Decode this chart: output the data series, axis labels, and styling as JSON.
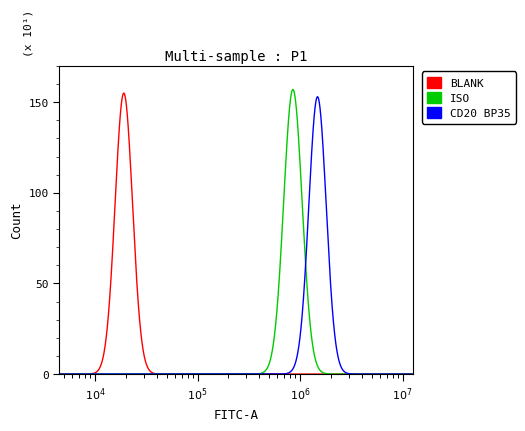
{
  "title": "Multi-sample : P1",
  "xlabel": "FITC-A",
  "ylabel": "Count",
  "y_label_multiplier": "(x 10¹)",
  "ylim": [
    0,
    170
  ],
  "yticks": [
    0,
    50,
    100,
    150
  ],
  "xlog_min": 3.65,
  "xlog_max": 7.1,
  "background_color": "#ffffff",
  "plot_bg_color": "#ffffff",
  "legend_labels": [
    "BLANK",
    "ISO",
    "CD20 BP35"
  ],
  "legend_colors": [
    "#ff0000",
    "#00cc00",
    "#0000ff"
  ],
  "curves": [
    {
      "color": "#ff0000",
      "mean_log": 4.28,
      "sigma_log": 0.085,
      "peak": 155,
      "label": "BLANK"
    },
    {
      "color": "#00cc00",
      "mean_log": 5.93,
      "sigma_log": 0.09,
      "peak": 157,
      "label": "ISO"
    },
    {
      "color": "#0000ff",
      "mean_log": 6.17,
      "sigma_log": 0.085,
      "peak": 153,
      "label": "CD20 BP35"
    }
  ],
  "title_fontsize": 10,
  "axis_label_fontsize": 9,
  "tick_fontsize": 8,
  "legend_fontsize": 8,
  "linewidth": 1.0
}
